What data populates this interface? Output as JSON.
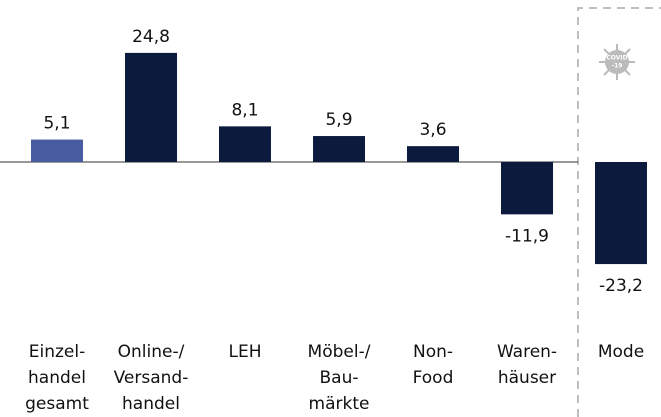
{
  "chart_data": {
    "type": "bar",
    "categories": [
      [
        "Einzel-",
        "handel",
        "gesamt"
      ],
      [
        "Online-/",
        "Versand-",
        "handel"
      ],
      [
        "LEH"
      ],
      [
        "Möbel-/",
        "Bau-",
        "märkte"
      ],
      [
        "Non-",
        "Food"
      ],
      [
        "Waren-",
        "häuser"
      ],
      [
        "Mode"
      ]
    ],
    "values": [
      5.1,
      24.8,
      8.1,
      5.9,
      3.6,
      -11.9,
      -23.2
    ],
    "value_labels": [
      "5,1",
      "24,8",
      "8,1",
      "5,9",
      "3,6",
      "-11,9",
      "-23,2"
    ],
    "colors": [
      "#4a5ca0",
      "#0c1a3d",
      "#0c1a3d",
      "#0c1a3d",
      "#0c1a3d",
      "#0c1a3d",
      "#0c1a3d"
    ],
    "ylim": [
      -25,
      30
    ],
    "annotation": [
      "COVID",
      "-19"
    ]
  }
}
